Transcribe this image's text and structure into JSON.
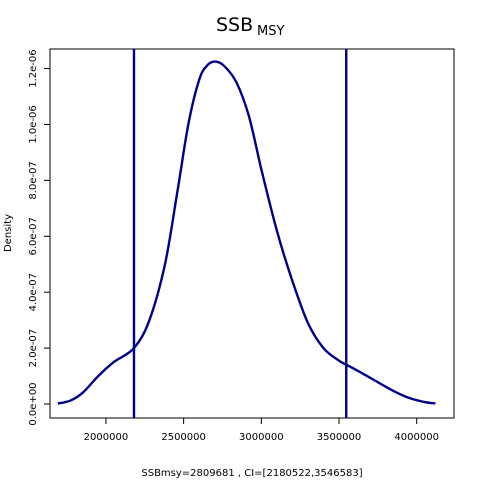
{
  "chart_data": {
    "type": "line",
    "title": "SSB",
    "title_subscript": "MSY",
    "xlabel": "SSBmsy=2809681 , CI=[2180522,3546583]",
    "ylabel": "Density",
    "xlim": [
      1640000,
      4240000
    ],
    "ylim": [
      -5e-08,
      1.27e-06
    ],
    "x_ticks": [
      2000000,
      2500000,
      3000000,
      3500000,
      4000000
    ],
    "x_tick_labels": [
      "2000000",
      "2500000",
      "3000000",
      "3500000",
      "4000000"
    ],
    "y_ticks": [
      0,
      2e-07,
      4e-07,
      6e-07,
      8e-07,
      1e-06,
      1.2e-06
    ],
    "y_tick_labels": [
      "0.0e+00",
      "2.0e-07",
      "4.0e-07",
      "6.0e-07",
      "8.0e-07",
      "1.0e-06",
      "1.2e-06"
    ],
    "grid": false,
    "series": [
      {
        "color": "#00008b",
        "x": [
          1690000,
          1770000,
          1850000,
          1950000,
          2050000,
          2180000,
          2280000,
          2380000,
          2460000,
          2530000,
          2600000,
          2650000,
          2700000,
          2760000,
          2840000,
          2920000,
          3000000,
          3100000,
          3200000,
          3300000,
          3400000,
          3500000,
          3550000,
          3650000,
          3750000,
          3850000,
          3950000,
          4050000,
          4120000
        ],
        "y": [
          2e-09,
          1.2e-08,
          4e-08,
          1e-07,
          1.5e-07,
          2e-07,
          3e-07,
          5e-07,
          7.6e-07,
          1e-06,
          1.16e-06,
          1.21e-06,
          1.225e-06,
          1.21e-06,
          1.15e-06,
          1.03e-06,
          8.4e-07,
          6.2e-07,
          4.4e-07,
          2.9e-07,
          2e-07,
          1.55e-07,
          1.4e-07,
          1.1e-07,
          7.8e-08,
          4.7e-08,
          2.2e-08,
          7e-09,
          2e-09
        ]
      }
    ],
    "vlines": [
      {
        "x": 2180522,
        "color": "#00008b"
      },
      {
        "x": 3546583,
        "color": "#00008b"
      }
    ]
  }
}
